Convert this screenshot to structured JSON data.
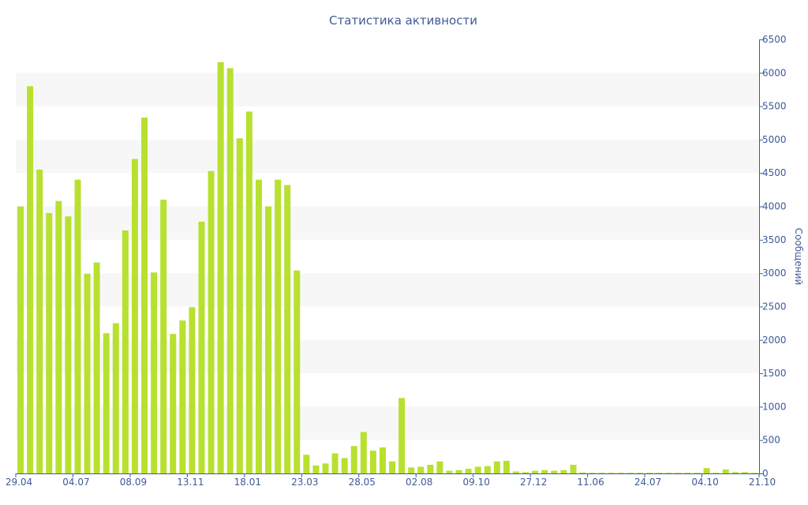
{
  "chart_data": {
    "type": "bar",
    "title": "Статистика активности",
    "ylabel": "Сообщений",
    "ylim": [
      0,
      6500
    ],
    "yticks": [
      0,
      500,
      1000,
      1500,
      2000,
      2500,
      3000,
      3500,
      4000,
      4500,
      5000,
      5500,
      6000,
      6500
    ],
    "x_tick_labels": [
      "29.04",
      "04.07",
      "08.09",
      "13.11",
      "18.01",
      "23.03",
      "28.05",
      "02.08",
      "09.10",
      "27.12",
      "11.06",
      "24.07",
      "04.10",
      "21.10"
    ],
    "values": [
      4000,
      5800,
      4550,
      3900,
      4080,
      3850,
      4400,
      2990,
      3160,
      2100,
      2250,
      3640,
      4710,
      5330,
      3010,
      4100,
      2090,
      2290,
      2490,
      3770,
      4530,
      6160,
      6070,
      5020,
      5420,
      4400,
      4000,
      4400,
      4320,
      3040,
      280,
      120,
      150,
      300,
      230,
      410,
      620,
      340,
      390,
      180,
      1130,
      90,
      100,
      130,
      180,
      40,
      50,
      70,
      100,
      110,
      180,
      190,
      30,
      20,
      40,
      50,
      40,
      50,
      130,
      15,
      10,
      10,
      10,
      10,
      10,
      10,
      10,
      10,
      10,
      10,
      10,
      10,
      80,
      10,
      60,
      20,
      20,
      10
    ],
    "bar_color": "#b8e02f",
    "grid": true,
    "grid_band_color": "#f7f7f7",
    "axis_color": "#3e5a96",
    "text_color": "#3e5a96"
  }
}
